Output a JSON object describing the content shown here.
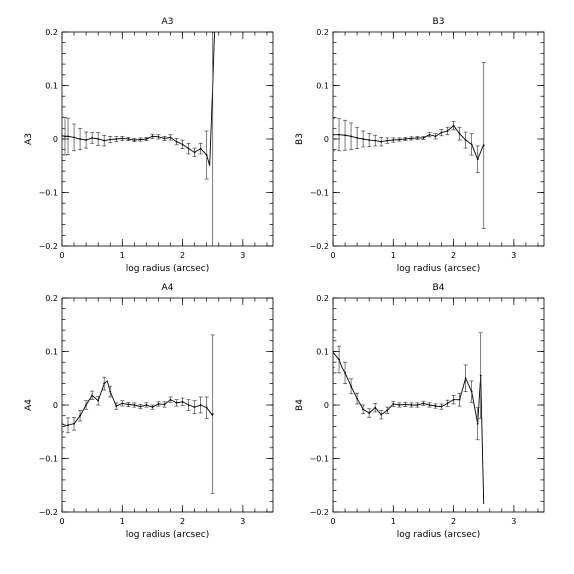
{
  "chart_data": [
    {
      "type": "line",
      "title": "A3",
      "ylabel": "A3",
      "xlabel": "log radius (arcsec)",
      "xlim": [
        0,
        3.5
      ],
      "ylim": [
        -0.2,
        0.2
      ],
      "xticks": [
        0,
        1,
        2,
        3
      ],
      "xtick_labels": [
        "0",
        "1",
        "2",
        "3"
      ],
      "yticks": [
        -0.2,
        -0.1,
        0,
        0.1,
        0.2
      ],
      "ytick_labels": [
        "−0.2",
        "−0.1",
        "0",
        "0.1",
        "0.2"
      ],
      "curve": {
        "x": [
          0.0,
          0.05,
          0.1,
          0.2,
          0.3,
          0.4,
          0.5,
          0.6,
          0.7,
          0.8,
          0.9,
          1.0,
          1.1,
          1.2,
          1.3,
          1.4,
          1.5,
          1.6,
          1.7,
          1.8,
          1.9,
          2.0,
          2.1,
          2.2,
          2.3,
          2.4,
          2.45,
          2.5,
          2.53
        ],
        "y": [
          0.006,
          0.005,
          0.005,
          0.003,
          0.0,
          -0.002,
          0.002,
          0.0,
          -0.003,
          -0.001,
          0.0,
          0.001,
          0.0,
          -0.002,
          -0.001,
          0.0,
          0.005,
          0.004,
          0.001,
          0.003,
          -0.005,
          -0.01,
          -0.018,
          -0.025,
          -0.018,
          -0.03,
          -0.05,
          0.1,
          0.2
        ]
      },
      "points": {
        "x": [
          0.0,
          0.05,
          0.1,
          0.2,
          0.3,
          0.4,
          0.5,
          0.6,
          0.7,
          0.8,
          0.9,
          1.0,
          1.1,
          1.2,
          1.3,
          1.4,
          1.5,
          1.6,
          1.7,
          1.8,
          1.9,
          2.0,
          2.1,
          2.2,
          2.3,
          2.4,
          2.5
        ],
        "y": [
          0.006,
          0.005,
          0.005,
          0.003,
          0.0,
          -0.002,
          0.002,
          0.0,
          -0.003,
          -0.001,
          0.0,
          0.001,
          0.0,
          -0.002,
          -0.001,
          0.0,
          0.005,
          0.004,
          0.001,
          0.003,
          -0.005,
          -0.01,
          -0.018,
          -0.025,
          -0.018,
          -0.03,
          0.2
        ],
        "err": [
          0.035,
          0.035,
          0.034,
          0.025,
          0.02,
          0.015,
          0.01,
          0.012,
          0.01,
          0.006,
          0.005,
          0.004,
          0.003,
          0.003,
          0.003,
          0.003,
          0.004,
          0.004,
          0.004,
          0.005,
          0.006,
          0.008,
          0.01,
          0.008,
          0.01,
          0.045,
          0.4
        ]
      }
    },
    {
      "type": "line",
      "title": "B3",
      "ylabel": "B3",
      "xlabel": "log radius (arcsec)",
      "xlim": [
        0,
        3.5
      ],
      "ylim": [
        -0.2,
        0.2
      ],
      "xticks": [
        0,
        1,
        2,
        3
      ],
      "xtick_labels": [
        "0",
        "1",
        "2",
        "3"
      ],
      "yticks": [
        -0.2,
        -0.1,
        0,
        0.1,
        0.2
      ],
      "ytick_labels": [
        "−0.2",
        "−0.1",
        "0",
        "0.1",
        "0.2"
      ],
      "curve": {
        "x": [
          0.0,
          0.1,
          0.2,
          0.3,
          0.4,
          0.5,
          0.6,
          0.7,
          0.8,
          0.9,
          1.0,
          1.1,
          1.2,
          1.3,
          1.4,
          1.5,
          1.6,
          1.7,
          1.8,
          1.9,
          2.0,
          2.1,
          2.2,
          2.3,
          2.4,
          2.5
        ],
        "y": [
          0.008,
          0.008,
          0.007,
          0.005,
          0.002,
          0.0,
          -0.002,
          -0.003,
          -0.005,
          -0.003,
          -0.002,
          -0.001,
          0.0,
          0.001,
          0.002,
          0.002,
          0.008,
          0.005,
          0.012,
          0.015,
          0.025,
          0.01,
          -0.002,
          -0.01,
          -0.038,
          -0.01
        ]
      },
      "points": {
        "x": [
          0.0,
          0.1,
          0.2,
          0.3,
          0.4,
          0.5,
          0.6,
          0.7,
          0.8,
          0.9,
          1.0,
          1.1,
          1.2,
          1.3,
          1.4,
          1.5,
          1.6,
          1.7,
          1.8,
          1.9,
          2.0,
          2.1,
          2.2,
          2.3,
          2.4,
          2.5
        ],
        "y": [
          0.008,
          0.008,
          0.007,
          0.005,
          0.002,
          0.0,
          -0.002,
          -0.003,
          -0.005,
          -0.003,
          -0.002,
          -0.001,
          0.0,
          0.001,
          0.002,
          0.002,
          0.008,
          0.005,
          0.012,
          0.015,
          0.025,
          0.01,
          -0.002,
          -0.01,
          -0.038,
          -0.012
        ],
        "err": [
          0.03,
          0.03,
          0.028,
          0.025,
          0.02,
          0.015,
          0.012,
          0.01,
          0.008,
          0.005,
          0.004,
          0.003,
          0.003,
          0.003,
          0.003,
          0.003,
          0.004,
          0.005,
          0.006,
          0.007,
          0.008,
          0.012,
          0.015,
          0.02,
          0.025,
          0.155
        ]
      }
    },
    {
      "type": "line",
      "title": "A4",
      "ylabel": "A4",
      "xlabel": "log radius (arcsec)",
      "xlim": [
        0,
        3.5
      ],
      "ylim": [
        -0.2,
        0.2
      ],
      "xticks": [
        0,
        1,
        2,
        3
      ],
      "xtick_labels": [
        "0",
        "1",
        "2",
        "3"
      ],
      "yticks": [
        -0.2,
        -0.1,
        0,
        0.1,
        0.2
      ],
      "ytick_labels": [
        "−0.2",
        "−0.1",
        "0",
        "0.1",
        "0.2"
      ],
      "curve": {
        "x": [
          0.0,
          0.05,
          0.1,
          0.15,
          0.2,
          0.3,
          0.4,
          0.5,
          0.6,
          0.7,
          0.75,
          0.8,
          0.9,
          1.0,
          1.1,
          1.2,
          1.3,
          1.4,
          1.5,
          1.6,
          1.7,
          1.8,
          1.9,
          2.0,
          2.1,
          2.2,
          2.3,
          2.4,
          2.5
        ],
        "y": [
          -0.035,
          -0.038,
          -0.038,
          -0.036,
          -0.035,
          -0.02,
          0.0,
          0.018,
          0.008,
          0.04,
          0.045,
          0.025,
          -0.002,
          0.003,
          0.001,
          0.0,
          -0.003,
          0.0,
          -0.004,
          0.002,
          0.001,
          0.01,
          0.004,
          0.006,
          0.0,
          -0.004,
          0.0,
          -0.005,
          -0.02
        ]
      },
      "points": {
        "x": [
          0.0,
          0.1,
          0.2,
          0.3,
          0.4,
          0.5,
          0.6,
          0.7,
          0.8,
          0.9,
          1.0,
          1.1,
          1.2,
          1.3,
          1.4,
          1.5,
          1.6,
          1.7,
          1.8,
          1.9,
          2.0,
          2.1,
          2.2,
          2.3,
          2.4,
          2.5
        ],
        "y": [
          -0.035,
          -0.038,
          -0.035,
          -0.02,
          0.0,
          0.018,
          0.008,
          0.04,
          0.025,
          -0.002,
          0.003,
          0.001,
          0.0,
          -0.003,
          0.0,
          -0.004,
          0.002,
          0.001,
          0.01,
          0.004,
          0.006,
          0.0,
          -0.004,
          0.0,
          -0.005,
          -0.017
        ],
        "err": [
          0.015,
          0.014,
          0.012,
          0.01,
          0.008,
          0.008,
          0.008,
          0.012,
          0.01,
          0.006,
          0.005,
          0.004,
          0.004,
          0.004,
          0.004,
          0.004,
          0.004,
          0.005,
          0.005,
          0.006,
          0.007,
          0.01,
          0.012,
          0.015,
          0.02,
          0.148
        ]
      }
    },
    {
      "type": "line",
      "title": "B4",
      "ylabel": "B4",
      "xlabel": "log radius (arcsec)",
      "xlim": [
        0,
        3.5
      ],
      "ylim": [
        -0.2,
        0.2
      ],
      "xticks": [
        0,
        1,
        2,
        3
      ],
      "xtick_labels": [
        "0",
        "1",
        "2",
        "3"
      ],
      "yticks": [
        -0.2,
        -0.1,
        0,
        0.1,
        0.2
      ],
      "ytick_labels": [
        "−0.2",
        "−0.1",
        "0",
        "0.1",
        "0.2"
      ],
      "curve": {
        "x": [
          0.0,
          0.05,
          0.1,
          0.15,
          0.2,
          0.3,
          0.4,
          0.5,
          0.6,
          0.7,
          0.8,
          0.9,
          1.0,
          1.1,
          1.2,
          1.3,
          1.4,
          1.5,
          1.6,
          1.7,
          1.8,
          1.9,
          2.0,
          2.1,
          2.2,
          2.3,
          2.4,
          2.45,
          2.5
        ],
        "y": [
          0.098,
          0.092,
          0.085,
          0.07,
          0.06,
          0.035,
          0.012,
          -0.008,
          -0.015,
          -0.005,
          -0.018,
          -0.01,
          0.002,
          0.0,
          0.001,
          0.0,
          0.0,
          0.003,
          0.0,
          -0.002,
          -0.003,
          0.003,
          0.01,
          0.01,
          0.05,
          0.025,
          -0.035,
          0.055,
          -0.185
        ]
      },
      "points": {
        "x": [
          0.0,
          0.1,
          0.2,
          0.3,
          0.4,
          0.5,
          0.6,
          0.7,
          0.8,
          0.9,
          1.0,
          1.1,
          1.2,
          1.3,
          1.4,
          1.5,
          1.6,
          1.7,
          1.8,
          1.9,
          2.0,
          2.1,
          2.2,
          2.3,
          2.4,
          2.45
        ],
        "y": [
          0.098,
          0.085,
          0.06,
          0.035,
          0.012,
          -0.008,
          -0.015,
          -0.005,
          -0.018,
          -0.01,
          0.002,
          0.0,
          0.001,
          0.0,
          0.0,
          0.003,
          0.0,
          -0.002,
          -0.003,
          0.003,
          0.01,
          0.01,
          0.05,
          0.025,
          -0.035,
          0.055
        ],
        "err": [
          0.028,
          0.025,
          0.02,
          0.014,
          0.01,
          0.008,
          0.008,
          0.008,
          0.008,
          0.006,
          0.005,
          0.004,
          0.004,
          0.004,
          0.004,
          0.004,
          0.004,
          0.004,
          0.005,
          0.006,
          0.008,
          0.012,
          0.025,
          0.02,
          0.03,
          0.08
        ]
      }
    }
  ]
}
